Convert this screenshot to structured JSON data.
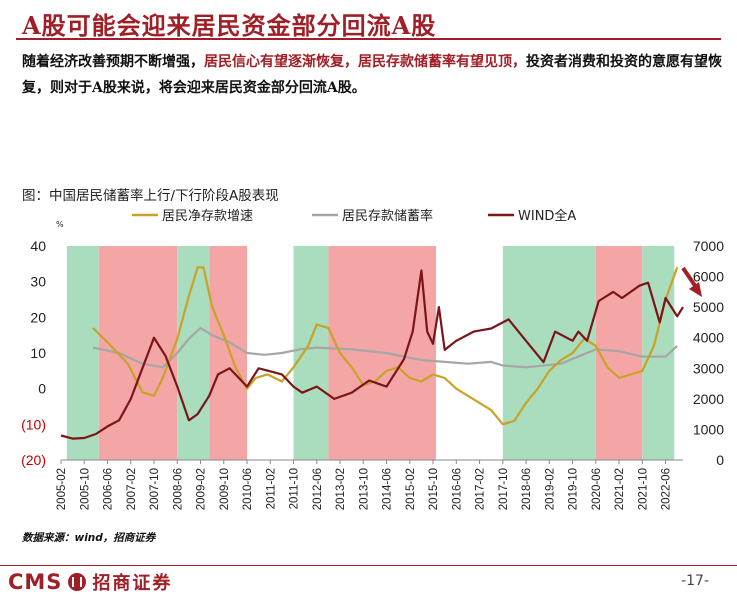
{
  "header": {
    "title": "A股可能会迎来居民资金部分回流A股",
    "subtitle_parts": [
      {
        "text": "随着经济改善预期不断增强，",
        "hl": false
      },
      {
        "text": "居民信心有望逐渐恢复，居民存款储蓄率有望见顶，",
        "hl": true
      },
      {
        "text": "投资者消费和投资的意愿有望恢复，则对于A股来说，将会迎来居民资金部分回流A股。",
        "hl": false
      }
    ]
  },
  "figure_title": "图：中国居民储蓄率上行/下行阶段A股表现",
  "source": "数据来源：wind，招商证券",
  "footer": {
    "logo_text": "CMS",
    "logo_cn": "招商证券",
    "page": "-17-"
  },
  "colors": {
    "brand": "#a01f26",
    "up_band": "#f4a6a6",
    "down_band": "#a9ddbe",
    "deposit_growth": "#c9a227",
    "saving_rate": "#a6a6a6",
    "wind": "#7b1518"
  },
  "chart_data": {
    "type": "line",
    "title": "中国居民储蓄率上行/下行阶段A股表现",
    "left_axis_unit": "%",
    "left_axis": {
      "min": -20,
      "max": 40,
      "ticks": [
        40,
        30,
        20,
        10,
        0,
        -10,
        -20
      ],
      "tick_labels": [
        "40",
        "30",
        "20",
        "10",
        "0",
        "(10)",
        "(20)"
      ]
    },
    "right_axis": {
      "min": 0,
      "max": 7000,
      "ticks": [
        7000,
        6000,
        5000,
        4000,
        3000,
        2000,
        1000,
        0
      ],
      "tick_labels": [
        "7000",
        "6000",
        "5000",
        "4000",
        "3000",
        "2000",
        "1000",
        "0"
      ]
    },
    "x_start": "2005-02",
    "x_end": "2022-12",
    "x_tick_labels": [
      "2005-02",
      "2005-10",
      "2006-06",
      "2007-02",
      "2007-10",
      "2008-06",
      "2009-02",
      "2009-10",
      "2010-06",
      "2011-02",
      "2011-10",
      "2012-06",
      "2013-02",
      "2013-10",
      "2014-06",
      "2015-02",
      "2015-10",
      "2016-06",
      "2017-02",
      "2017-10",
      "2018-06",
      "2019-02",
      "2019-10",
      "2020-06",
      "2021-02",
      "2021-10",
      "2022-06"
    ],
    "bands": [
      {
        "start": "2005-04",
        "end": "2006-03",
        "type": "down"
      },
      {
        "start": "2006-03",
        "end": "2008-06",
        "type": "up"
      },
      {
        "start": "2008-06",
        "end": "2009-05",
        "type": "down"
      },
      {
        "start": "2009-05",
        "end": "2010-06",
        "type": "up"
      },
      {
        "start": "2011-10",
        "end": "2012-10",
        "type": "down"
      },
      {
        "start": "2012-10",
        "end": "2015-11",
        "type": "up"
      },
      {
        "start": "2017-10",
        "end": "2020-06",
        "type": "down"
      },
      {
        "start": "2020-06",
        "end": "2021-10",
        "type": "up"
      },
      {
        "start": "2021-10",
        "end": "2022-09",
        "type": "down"
      }
    ],
    "series": [
      {
        "name": "居民净存款增速",
        "axis": "left",
        "points": [
          [
            "2006-01",
            17
          ],
          [
            "2006-06",
            13
          ],
          [
            "2007-01",
            7
          ],
          [
            "2007-06",
            -1
          ],
          [
            "2007-10",
            -2
          ],
          [
            "2008-01",
            3
          ],
          [
            "2008-06",
            14
          ],
          [
            "2008-10",
            26
          ],
          [
            "2009-01",
            34
          ],
          [
            "2009-03",
            34
          ],
          [
            "2009-06",
            23
          ],
          [
            "2009-10",
            15
          ],
          [
            "2010-02",
            6
          ],
          [
            "2010-06",
            0
          ],
          [
            "2010-09",
            3
          ],
          [
            "2011-01",
            4
          ],
          [
            "2011-06",
            2
          ],
          [
            "2011-10",
            6
          ],
          [
            "2012-03",
            12
          ],
          [
            "2012-06",
            18
          ],
          [
            "2012-10",
            17
          ],
          [
            "2013-02",
            10
          ],
          [
            "2013-06",
            6
          ],
          [
            "2013-10",
            1
          ],
          [
            "2014-02",
            2
          ],
          [
            "2014-06",
            5
          ],
          [
            "2014-10",
            6
          ],
          [
            "2015-02",
            3
          ],
          [
            "2015-06",
            2
          ],
          [
            "2015-10",
            4
          ],
          [
            "2016-02",
            3
          ],
          [
            "2016-06",
            0
          ],
          [
            "2016-10",
            -2
          ],
          [
            "2017-02",
            -4
          ],
          [
            "2017-06",
            -6
          ],
          [
            "2017-10",
            -10
          ],
          [
            "2018-02",
            -9
          ],
          [
            "2018-06",
            -4
          ],
          [
            "2018-10",
            0
          ],
          [
            "2019-02",
            5
          ],
          [
            "2019-06",
            8
          ],
          [
            "2019-10",
            10
          ],
          [
            "2020-02",
            14
          ],
          [
            "2020-06",
            12
          ],
          [
            "2020-10",
            6
          ],
          [
            "2021-02",
            3
          ],
          [
            "2021-06",
            4
          ],
          [
            "2021-10",
            5
          ],
          [
            "2022-02",
            12
          ],
          [
            "2022-06",
            25
          ],
          [
            "2022-10",
            34
          ]
        ]
      },
      {
        "name": "居民存款储蓄率",
        "axis": "left",
        "points": [
          [
            "2006-01",
            11.5
          ],
          [
            "2006-10",
            10
          ],
          [
            "2007-06",
            7
          ],
          [
            "2008-01",
            6
          ],
          [
            "2008-06",
            10
          ],
          [
            "2008-10",
            14
          ],
          [
            "2009-02",
            17
          ],
          [
            "2009-06",
            15
          ],
          [
            "2009-12",
            13
          ],
          [
            "2010-06",
            10
          ],
          [
            "2010-12",
            9.5
          ],
          [
            "2011-06",
            10
          ],
          [
            "2011-12",
            11
          ],
          [
            "2012-06",
            11.5
          ],
          [
            "2013-06",
            11
          ],
          [
            "2014-06",
            10
          ],
          [
            "2015-06",
            8
          ],
          [
            "2016-02",
            7.5
          ],
          [
            "2016-10",
            7
          ],
          [
            "2017-06",
            7.5
          ],
          [
            "2017-10",
            6.5
          ],
          [
            "2018-06",
            6
          ],
          [
            "2019-06",
            7
          ],
          [
            "2020-06",
            11
          ],
          [
            "2021-02",
            10.5
          ],
          [
            "2021-10",
            9
          ],
          [
            "2022-06",
            9
          ],
          [
            "2022-10",
            12
          ]
        ]
      },
      {
        "name": "WIND全A",
        "axis": "right",
        "points": [
          [
            "2005-02",
            800
          ],
          [
            "2005-06",
            700
          ],
          [
            "2005-10",
            720
          ],
          [
            "2006-02",
            850
          ],
          [
            "2006-06",
            1100
          ],
          [
            "2006-10",
            1300
          ],
          [
            "2007-02",
            2000
          ],
          [
            "2007-06",
            3000
          ],
          [
            "2007-10",
            4000
          ],
          [
            "2007-12",
            3700
          ],
          [
            "2008-02",
            3400
          ],
          [
            "2008-06",
            2400
          ],
          [
            "2008-10",
            1300
          ],
          [
            "2009-01",
            1500
          ],
          [
            "2009-05",
            2100
          ],
          [
            "2009-08",
            2800
          ],
          [
            "2009-12",
            3000
          ],
          [
            "2010-06",
            2400
          ],
          [
            "2010-10",
            3000
          ],
          [
            "2011-02",
            2900
          ],
          [
            "2011-06",
            2800
          ],
          [
            "2011-10",
            2400
          ],
          [
            "2012-01",
            2200
          ],
          [
            "2012-06",
            2400
          ],
          [
            "2012-12",
            2000
          ],
          [
            "2013-06",
            2200
          ],
          [
            "2013-12",
            2600
          ],
          [
            "2014-06",
            2400
          ],
          [
            "2014-12",
            3300
          ],
          [
            "2015-03",
            4200
          ],
          [
            "2015-06",
            6200
          ],
          [
            "2015-08",
            4200
          ],
          [
            "2015-10",
            3800
          ],
          [
            "2015-12",
            5000
          ],
          [
            "2016-02",
            3600
          ],
          [
            "2016-06",
            3900
          ],
          [
            "2016-12",
            4200
          ],
          [
            "2017-06",
            4300
          ],
          [
            "2017-12",
            4600
          ],
          [
            "2018-06",
            3900
          ],
          [
            "2018-12",
            3200
          ],
          [
            "2019-04",
            4200
          ],
          [
            "2019-10",
            3900
          ],
          [
            "2019-12",
            4200
          ],
          [
            "2020-03",
            3900
          ],
          [
            "2020-07",
            5200
          ],
          [
            "2020-12",
            5500
          ],
          [
            "2021-03",
            5300
          ],
          [
            "2021-09",
            5700
          ],
          [
            "2021-12",
            5800
          ],
          [
            "2022-04",
            4500
          ],
          [
            "2022-06",
            5300
          ],
          [
            "2022-10",
            4700
          ],
          [
            "2022-12",
            5000
          ]
        ]
      }
    ]
  }
}
